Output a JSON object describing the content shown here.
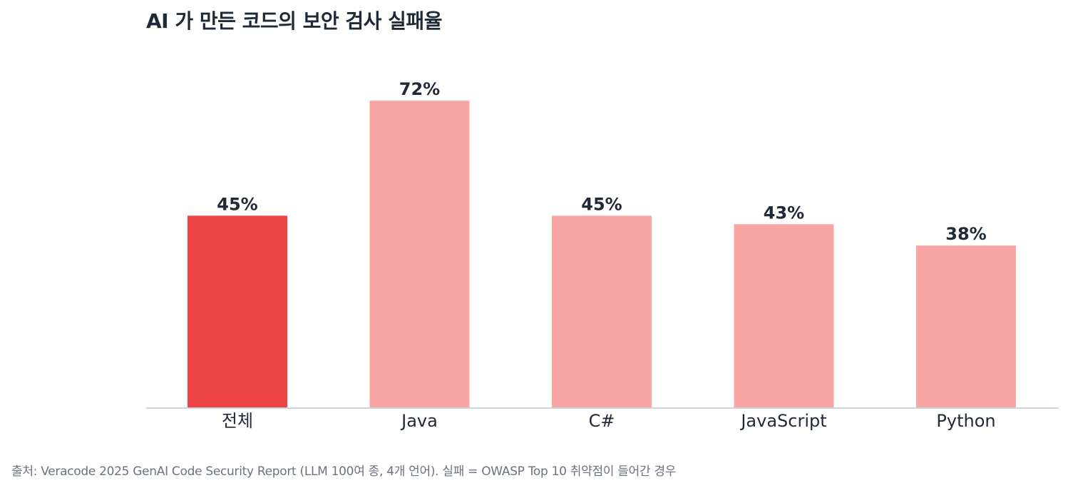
{
  "chart_data": {
    "type": "bar",
    "title": "AI 가 만든 코드의 보안 검사 실패율",
    "categories": [
      "전체",
      "Java",
      "C#",
      "JavaScript",
      "Python"
    ],
    "values": [
      45,
      72,
      45,
      43,
      38
    ],
    "value_labels": [
      "45%",
      "72%",
      "45%",
      "43%",
      "38%"
    ],
    "unit": "%",
    "colors": [
      "#ef4444",
      "#f9a5a4",
      "#f9a5a4",
      "#f9a5a4",
      "#f9a5a4"
    ],
    "highlight_color": "#ef4444",
    "bar_color": "#f9a5a4",
    "axis_color": "#cbd5e1",
    "ylim": [
      0,
      100
    ],
    "grid": false,
    "xlabel": "",
    "ylabel": ""
  },
  "source_note": "출처: Veracode 2025 GenAI Code Security Report (LLM 100여 종, 4개 언어). 실패 = OWASP Top 10 취약점이 들어간 경우"
}
